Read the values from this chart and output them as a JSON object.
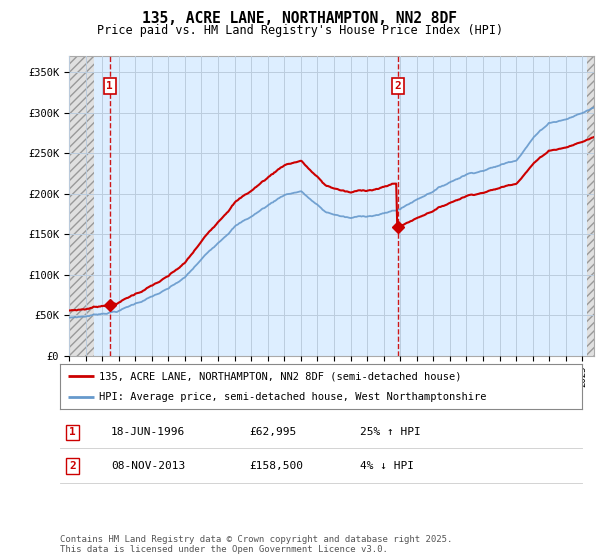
{
  "title": "135, ACRE LANE, NORTHAMPTON, NN2 8DF",
  "subtitle": "Price paid vs. HM Land Registry's House Price Index (HPI)",
  "ylim": [
    0,
    370000
  ],
  "yticks": [
    0,
    50000,
    100000,
    150000,
    200000,
    250000,
    300000,
    350000
  ],
  "ytick_labels": [
    "£0",
    "£50K",
    "£100K",
    "£150K",
    "£200K",
    "£250K",
    "£300K",
    "£350K"
  ],
  "legend_line1": "135, ACRE LANE, NORTHAMPTON, NN2 8DF (semi-detached house)",
  "legend_line2": "HPI: Average price, semi-detached house, West Northamptonshire",
  "annotation1_label": "1",
  "annotation1_date": "18-JUN-1996",
  "annotation1_price": "£62,995",
  "annotation1_hpi": "25% ↑ HPI",
  "annotation2_label": "2",
  "annotation2_date": "08-NOV-2013",
  "annotation2_price": "£158,500",
  "annotation2_hpi": "4% ↓ HPI",
  "footer": "Contains HM Land Registry data © Crown copyright and database right 2025.\nThis data is licensed under the Open Government Licence v3.0.",
  "sale1_x": 1996.46,
  "sale1_y": 62995,
  "sale2_x": 2013.85,
  "sale2_y": 158500,
  "price_line_color": "#cc0000",
  "hpi_line_color": "#6699cc",
  "vline_color": "#cc0000",
  "background_color": "#ffffff",
  "plot_bg_color": "#ddeeff",
  "grid_color": "#bbccdd",
  "hatch_left_end": 1995.5,
  "hatch_right_start": 2025.3,
  "xmin": 1994.0,
  "xmax": 2025.7
}
